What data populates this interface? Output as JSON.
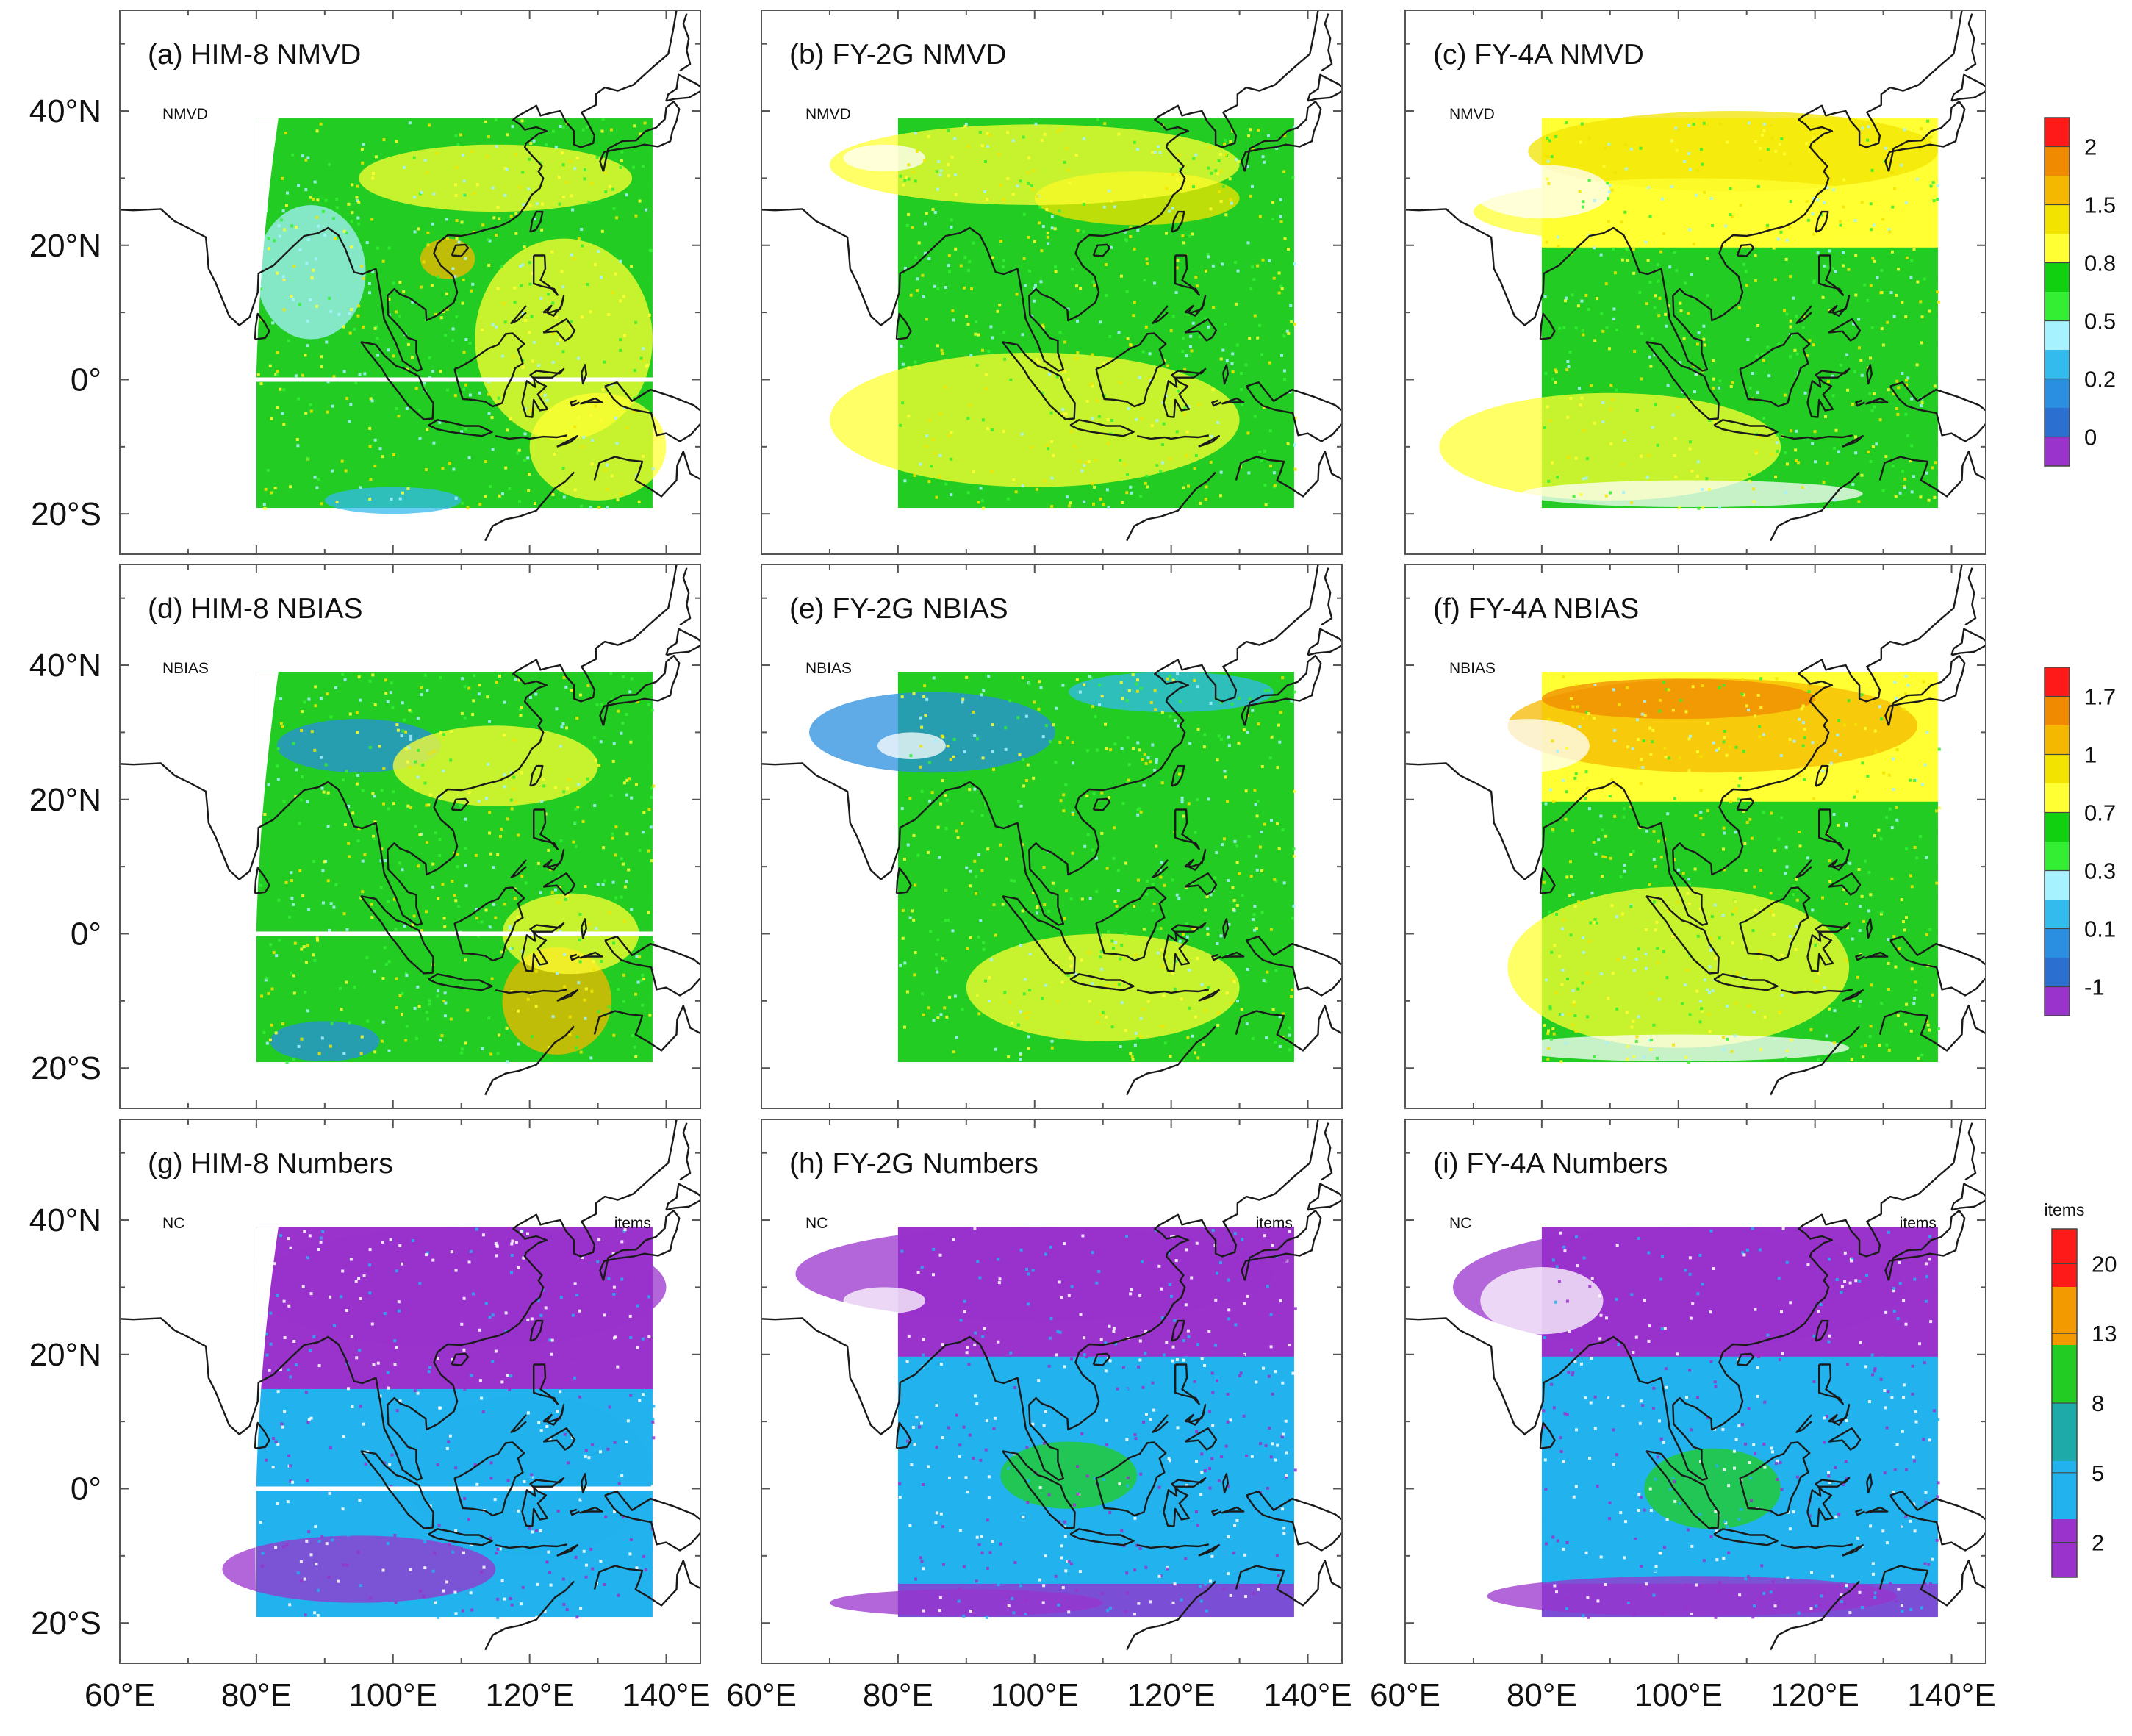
{
  "lon_ticks": [
    "60°E",
    "80°E",
    "100°E",
    "120°E",
    "140°E"
  ],
  "lat_ticks": [
    "40°N",
    "20°N",
    "0°",
    "20°S"
  ],
  "panels": [
    {
      "title": "(a)  HIM-8 NMVD",
      "variable": "NMVD",
      "units": "",
      "satellite": "HIM-8",
      "row": 0
    },
    {
      "title": "(b)   FY-2G NMVD",
      "variable": "NMVD",
      "units": "",
      "satellite": "FY-2G",
      "row": 0
    },
    {
      "title": "(c)   FY-4A NMVD",
      "variable": "NMVD",
      "units": "",
      "satellite": "FY-4A",
      "row": 0
    },
    {
      "title": "(d)  HIM-8 NBIAS",
      "variable": "NBIAS",
      "units": "",
      "satellite": "HIM-8",
      "row": 1
    },
    {
      "title": "(e)   FY-2G NBIAS",
      "variable": "NBIAS",
      "units": "",
      "satellite": "FY-2G",
      "row": 1
    },
    {
      "title": "(f)   FY-4A NBIAS",
      "variable": "NBIAS",
      "units": "",
      "satellite": "FY-4A",
      "row": 1
    },
    {
      "title": "(g)  HIM-8 Numbers",
      "variable": "NC",
      "units": "items",
      "satellite": "HIM-8",
      "row": 2
    },
    {
      "title": "(h)   FY-2G Numbers",
      "variable": "NC",
      "units": "items",
      "satellite": "FY-2G",
      "row": 2
    },
    {
      "title": "(i)   FY-4A Numbers",
      "variable": "NC",
      "units": "items",
      "satellite": "FY-4A",
      "row": 2
    }
  ],
  "colorbars": [
    {
      "row": 0,
      "unit": "",
      "labels": [
        "2",
        "1.5",
        "0.8",
        "0.5",
        "0.2",
        "0"
      ],
      "colors": [
        "#ff1a1a",
        "#f08a00",
        "#f5b800",
        "#f2e400",
        "#ffff33",
        "#10d010",
        "#33ee33",
        "#a6f2ff",
        "#33bbee",
        "#2a8fe0",
        "#2b6fd0",
        "#9933cc"
      ]
    },
    {
      "row": 1,
      "unit": "",
      "labels": [
        "1.7",
        "1",
        "0.7",
        "0.3",
        "0.1",
        "-1"
      ],
      "colors": [
        "#ff1a1a",
        "#f08a00",
        "#f5b800",
        "#f2e400",
        "#ffff33",
        "#10d010",
        "#33ee33",
        "#a6f2ff",
        "#33bbee",
        "#2a8fe0",
        "#2b6fd0",
        "#9933cc"
      ]
    },
    {
      "row": 2,
      "unit": "items",
      "labels": [
        "20",
        "13",
        "8",
        "5",
        "2"
      ],
      "colors": [
        "#ff1a1a",
        "#f29a00",
        "#22cc22",
        "#1faaaa",
        "#22b2ee",
        "#9933cc"
      ]
    }
  ]
}
